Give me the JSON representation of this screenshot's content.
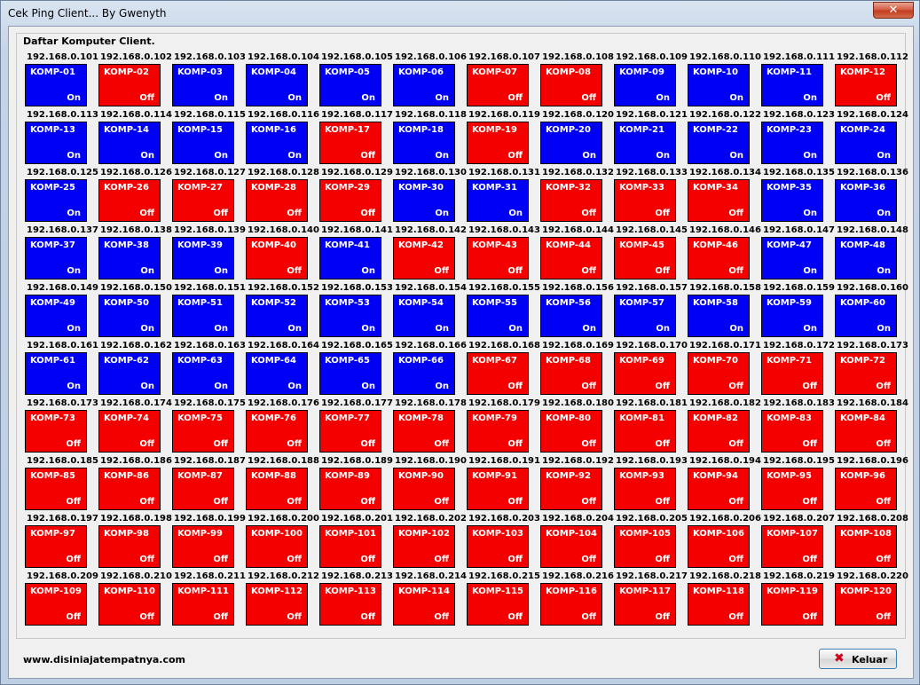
{
  "window": {
    "title": "Cek Ping Client...  By Gwenyth",
    "close_glyph": "✕"
  },
  "group": {
    "title": "Daftar Komputer Client."
  },
  "colors": {
    "on": "#0000f4",
    "off": "#f40000"
  },
  "clients": [
    {
      "ip": "192.168.0.101",
      "name": "KOMP-01",
      "status": "On"
    },
    {
      "ip": "192.168.0.102",
      "name": "KOMP-02",
      "status": "Off"
    },
    {
      "ip": "192.168.0.103",
      "name": "KOMP-03",
      "status": "On"
    },
    {
      "ip": "192.168.0.104",
      "name": "KOMP-04",
      "status": "On"
    },
    {
      "ip": "192.168.0.105",
      "name": "KOMP-05",
      "status": "On"
    },
    {
      "ip": "192.168.0.106",
      "name": "KOMP-06",
      "status": "On"
    },
    {
      "ip": "192.168.0.107",
      "name": "KOMP-07",
      "status": "Off"
    },
    {
      "ip": "192.168.0.108",
      "name": "KOMP-08",
      "status": "Off"
    },
    {
      "ip": "192.168.0.109",
      "name": "KOMP-09",
      "status": "On"
    },
    {
      "ip": "192.168.0.110",
      "name": "KOMP-10",
      "status": "On"
    },
    {
      "ip": "192.168.0.111",
      "name": "KOMP-11",
      "status": "On"
    },
    {
      "ip": "192.168.0.112",
      "name": "KOMP-12",
      "status": "Off"
    },
    {
      "ip": "192.168.0.113",
      "name": "KOMP-13",
      "status": "On"
    },
    {
      "ip": "192.168.0.114",
      "name": "KOMP-14",
      "status": "On"
    },
    {
      "ip": "192.168.0.115",
      "name": "KOMP-15",
      "status": "On"
    },
    {
      "ip": "192.168.0.116",
      "name": "KOMP-16",
      "status": "On"
    },
    {
      "ip": "192.168.0.117",
      "name": "KOMP-17",
      "status": "Off"
    },
    {
      "ip": "192.168.0.118",
      "name": "KOMP-18",
      "status": "On"
    },
    {
      "ip": "192.168.0.119",
      "name": "KOMP-19",
      "status": "Off"
    },
    {
      "ip": "192.168.0.120",
      "name": "KOMP-20",
      "status": "On"
    },
    {
      "ip": "192.168.0.121",
      "name": "KOMP-21",
      "status": "On"
    },
    {
      "ip": "192.168.0.122",
      "name": "KOMP-22",
      "status": "On"
    },
    {
      "ip": "192.168.0.123",
      "name": "KOMP-23",
      "status": "On"
    },
    {
      "ip": "192.168.0.124",
      "name": "KOMP-24",
      "status": "On"
    },
    {
      "ip": "192.168.0.125",
      "name": "KOMP-25",
      "status": "On"
    },
    {
      "ip": "192.168.0.126",
      "name": "KOMP-26",
      "status": "Off"
    },
    {
      "ip": "192.168.0.127",
      "name": "KOMP-27",
      "status": "Off"
    },
    {
      "ip": "192.168.0.128",
      "name": "KOMP-28",
      "status": "Off"
    },
    {
      "ip": "192.168.0.129",
      "name": "KOMP-29",
      "status": "Off"
    },
    {
      "ip": "192.168.0.130",
      "name": "KOMP-30",
      "status": "On"
    },
    {
      "ip": "192.168.0.131",
      "name": "KOMP-31",
      "status": "On"
    },
    {
      "ip": "192.168.0.132",
      "name": "KOMP-32",
      "status": "Off"
    },
    {
      "ip": "192.168.0.133",
      "name": "KOMP-33",
      "status": "Off"
    },
    {
      "ip": "192.168.0.134",
      "name": "KOMP-34",
      "status": "Off"
    },
    {
      "ip": "192.168.0.135",
      "name": "KOMP-35",
      "status": "On"
    },
    {
      "ip": "192.168.0.136",
      "name": "KOMP-36",
      "status": "On"
    },
    {
      "ip": "192.168.0.137",
      "name": "KOMP-37",
      "status": "On"
    },
    {
      "ip": "192.168.0.138",
      "name": "KOMP-38",
      "status": "On"
    },
    {
      "ip": "192.168.0.139",
      "name": "KOMP-39",
      "status": "On"
    },
    {
      "ip": "192.168.0.140",
      "name": "KOMP-40",
      "status": "Off"
    },
    {
      "ip": "192.168.0.141",
      "name": "KOMP-41",
      "status": "On"
    },
    {
      "ip": "192.168.0.142",
      "name": "KOMP-42",
      "status": "Off"
    },
    {
      "ip": "192.168.0.143",
      "name": "KOMP-43",
      "status": "Off"
    },
    {
      "ip": "192.168.0.144",
      "name": "KOMP-44",
      "status": "Off"
    },
    {
      "ip": "192.168.0.145",
      "name": "KOMP-45",
      "status": "Off"
    },
    {
      "ip": "192.168.0.146",
      "name": "KOMP-46",
      "status": "Off"
    },
    {
      "ip": "192.168.0.147",
      "name": "KOMP-47",
      "status": "On"
    },
    {
      "ip": "192.168.0.148",
      "name": "KOMP-48",
      "status": "On"
    },
    {
      "ip": "192.168.0.149",
      "name": "KOMP-49",
      "status": "On"
    },
    {
      "ip": "192.168.0.150",
      "name": "KOMP-50",
      "status": "On"
    },
    {
      "ip": "192.168.0.151",
      "name": "KOMP-51",
      "status": "On"
    },
    {
      "ip": "192.168.0.152",
      "name": "KOMP-52",
      "status": "On"
    },
    {
      "ip": "192.168.0.153",
      "name": "KOMP-53",
      "status": "On"
    },
    {
      "ip": "192.168.0.154",
      "name": "KOMP-54",
      "status": "On"
    },
    {
      "ip": "192.168.0.155",
      "name": "KOMP-55",
      "status": "On"
    },
    {
      "ip": "192.168.0.156",
      "name": "KOMP-56",
      "status": "On"
    },
    {
      "ip": "192.168.0.157",
      "name": "KOMP-57",
      "status": "On"
    },
    {
      "ip": "192.168.0.158",
      "name": "KOMP-58",
      "status": "On"
    },
    {
      "ip": "192.168.0.159",
      "name": "KOMP-59",
      "status": "On"
    },
    {
      "ip": "192.168.0.160",
      "name": "KOMP-60",
      "status": "On"
    },
    {
      "ip": "192.168.0.161",
      "name": "KOMP-61",
      "status": "On"
    },
    {
      "ip": "192.168.0.162",
      "name": "KOMP-62",
      "status": "On"
    },
    {
      "ip": "192.168.0.163",
      "name": "KOMP-63",
      "status": "On"
    },
    {
      "ip": "192.168.0.164",
      "name": "KOMP-64",
      "status": "On"
    },
    {
      "ip": "192.168.0.165",
      "name": "KOMP-65",
      "status": "On"
    },
    {
      "ip": "192.168.0.166",
      "name": "KOMP-66",
      "status": "On"
    },
    {
      "ip": "192.168.0.168",
      "name": "KOMP-67",
      "status": "Off"
    },
    {
      "ip": "192.168.0.169",
      "name": "KOMP-68",
      "status": "Off"
    },
    {
      "ip": "192.168.0.170",
      "name": "KOMP-69",
      "status": "Off"
    },
    {
      "ip": "192.168.0.171",
      "name": "KOMP-70",
      "status": "Off"
    },
    {
      "ip": "192.168.0.172",
      "name": "KOMP-71",
      "status": "Off"
    },
    {
      "ip": "192.168.0.173",
      "name": "KOMP-72",
      "status": "Off"
    },
    {
      "ip": "192.168.0.173",
      "name": "KOMP-73",
      "status": "Off"
    },
    {
      "ip": "192.168.0.174",
      "name": "KOMP-74",
      "status": "Off"
    },
    {
      "ip": "192.168.0.175",
      "name": "KOMP-75",
      "status": "Off"
    },
    {
      "ip": "192.168.0.176",
      "name": "KOMP-76",
      "status": "Off"
    },
    {
      "ip": "192.168.0.177",
      "name": "KOMP-77",
      "status": "Off"
    },
    {
      "ip": "192.168.0.178",
      "name": "KOMP-78",
      "status": "Off"
    },
    {
      "ip": "192.168.0.179",
      "name": "KOMP-79",
      "status": "Off"
    },
    {
      "ip": "192.168.0.180",
      "name": "KOMP-80",
      "status": "Off"
    },
    {
      "ip": "192.168.0.181",
      "name": "KOMP-81",
      "status": "Off"
    },
    {
      "ip": "192.168.0.182",
      "name": "KOMP-82",
      "status": "Off"
    },
    {
      "ip": "192.168.0.183",
      "name": "KOMP-83",
      "status": "Off"
    },
    {
      "ip": "192.168.0.184",
      "name": "KOMP-84",
      "status": "Off"
    },
    {
      "ip": "192.168.0.185",
      "name": "KOMP-85",
      "status": "Off"
    },
    {
      "ip": "192.168.0.186",
      "name": "KOMP-86",
      "status": "Off"
    },
    {
      "ip": "192.168.0.187",
      "name": "KOMP-87",
      "status": "Off"
    },
    {
      "ip": "192.168.0.188",
      "name": "KOMP-88",
      "status": "Off"
    },
    {
      "ip": "192.168.0.189",
      "name": "KOMP-89",
      "status": "Off"
    },
    {
      "ip": "192.168.0.190",
      "name": "KOMP-90",
      "status": "Off"
    },
    {
      "ip": "192.168.0.191",
      "name": "KOMP-91",
      "status": "Off"
    },
    {
      "ip": "192.168.0.192",
      "name": "KOMP-92",
      "status": "Off"
    },
    {
      "ip": "192.168.0.193",
      "name": "KOMP-93",
      "status": "Off"
    },
    {
      "ip": "192.168.0.194",
      "name": "KOMP-94",
      "status": "Off"
    },
    {
      "ip": "192.168.0.195",
      "name": "KOMP-95",
      "status": "Off"
    },
    {
      "ip": "192.168.0.196",
      "name": "KOMP-96",
      "status": "Off"
    },
    {
      "ip": "192.168.0.197",
      "name": "KOMP-97",
      "status": "Off"
    },
    {
      "ip": "192.168.0.198",
      "name": "KOMP-98",
      "status": "Off"
    },
    {
      "ip": "192.168.0.199",
      "name": "KOMP-99",
      "status": "Off"
    },
    {
      "ip": "192.168.0.200",
      "name": "KOMP-100",
      "status": "Off"
    },
    {
      "ip": "192.168.0.201",
      "name": "KOMP-101",
      "status": "Off"
    },
    {
      "ip": "192.168.0.202",
      "name": "KOMP-102",
      "status": "Off"
    },
    {
      "ip": "192.168.0.203",
      "name": "KOMP-103",
      "status": "Off"
    },
    {
      "ip": "192.168.0.204",
      "name": "KOMP-104",
      "status": "Off"
    },
    {
      "ip": "192.168.0.205",
      "name": "KOMP-105",
      "status": "Off"
    },
    {
      "ip": "192.168.0.206",
      "name": "KOMP-106",
      "status": "Off"
    },
    {
      "ip": "192.168.0.207",
      "name": "KOMP-107",
      "status": "Off"
    },
    {
      "ip": "192.168.0.208",
      "name": "KOMP-108",
      "status": "Off"
    },
    {
      "ip": "192.168.0.209",
      "name": "KOMP-109",
      "status": "Off"
    },
    {
      "ip": "192.168.0.210",
      "name": "KOMP-110",
      "status": "Off"
    },
    {
      "ip": "192.168.0.211",
      "name": "KOMP-111",
      "status": "Off"
    },
    {
      "ip": "192.168.0.212",
      "name": "KOMP-112",
      "status": "Off"
    },
    {
      "ip": "192.168.0.213",
      "name": "KOMP-113",
      "status": "Off"
    },
    {
      "ip": "192.168.0.214",
      "name": "KOMP-114",
      "status": "Off"
    },
    {
      "ip": "192.168.0.215",
      "name": "KOMP-115",
      "status": "Off"
    },
    {
      "ip": "192.168.0.216",
      "name": "KOMP-116",
      "status": "Off"
    },
    {
      "ip": "192.168.0.217",
      "name": "KOMP-117",
      "status": "Off"
    },
    {
      "ip": "192.168.0.218",
      "name": "KOMP-118",
      "status": "Off"
    },
    {
      "ip": "192.168.0.219",
      "name": "KOMP-119",
      "status": "Off"
    },
    {
      "ip": "192.168.0.220",
      "name": "KOMP-120",
      "status": "Off"
    }
  ],
  "footer": {
    "url": "www.disiniajatempatnya.com",
    "exit_label": "Keluar",
    "exit_icon": "x-icon"
  }
}
